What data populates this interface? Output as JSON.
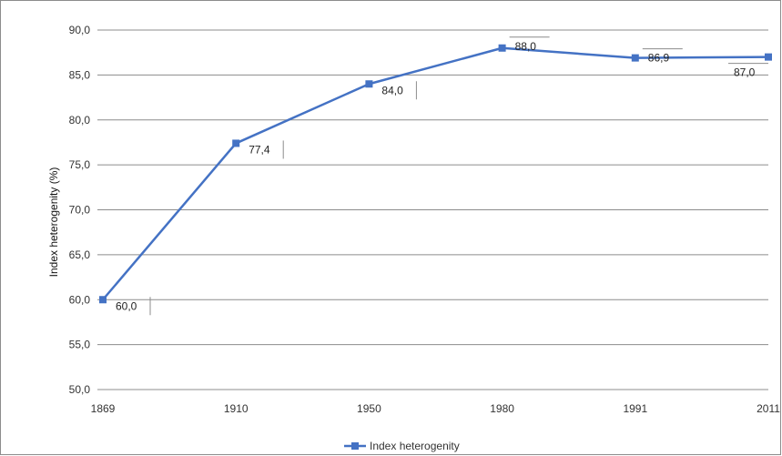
{
  "chart_data": {
    "type": "line",
    "title": "",
    "xlabel": "",
    "ylabel": "Index heterogenity (%)",
    "categories": [
      "1869",
      "1910",
      "1950",
      "1980",
      "1991",
      "2011"
    ],
    "series": [
      {
        "name": "Index heterogenity",
        "values": [
          60.0,
          77.4,
          84.0,
          88.0,
          86.9,
          87.0
        ],
        "labels": [
          "60,0",
          "77,4",
          "84,0",
          "88,0",
          "86,9",
          "87,0"
        ],
        "color": "#4472c4"
      }
    ],
    "ylim": [
      50,
      90
    ],
    "yticks": [
      90,
      85,
      80,
      75,
      70,
      65,
      60,
      55,
      50
    ],
    "ytick_labels": [
      "90,0",
      "85,0",
      "80,0",
      "75,0",
      "70,0",
      "65,0",
      "60,0",
      "55,0",
      "50,0"
    ],
    "grid": true,
    "legend": "bottom"
  }
}
